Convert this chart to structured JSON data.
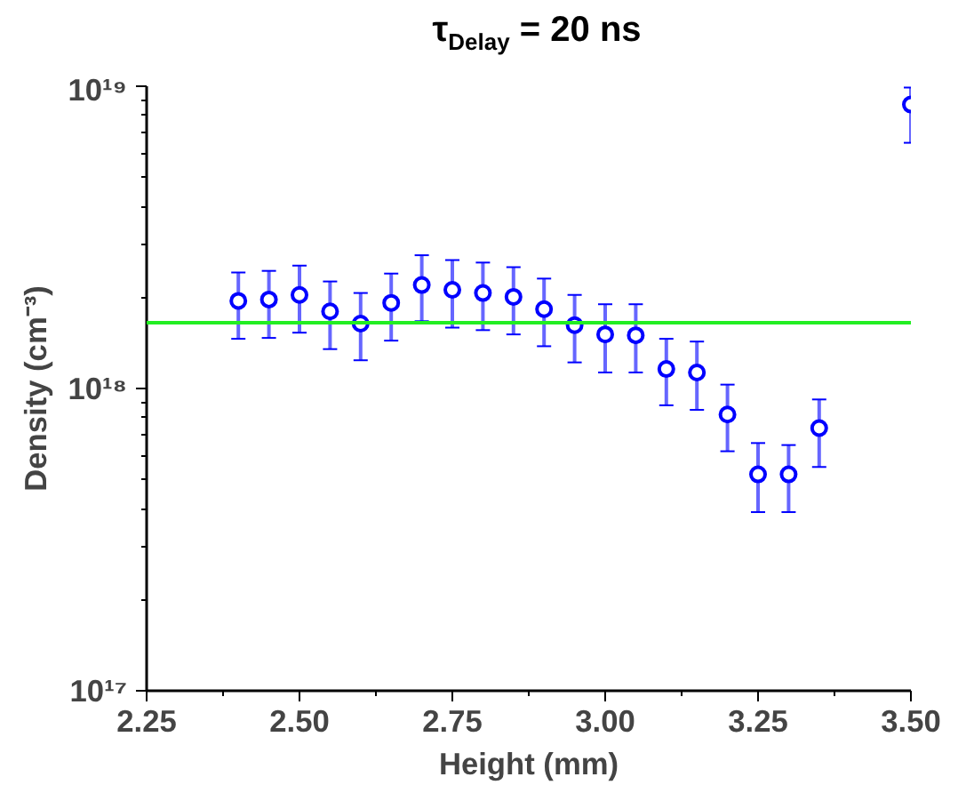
{
  "chart_data": {
    "type": "scatter",
    "title": "τ$_{Delay}$ = 20 ns",
    "xlabel": "Height (mm)",
    "ylabel": "Density (cm⁻³)",
    "x": [
      2.4,
      2.45,
      2.5,
      2.55,
      2.6,
      2.65,
      2.7,
      2.75,
      2.8,
      2.85,
      2.9,
      2.95,
      3.0,
      3.05,
      3.1,
      3.15,
      3.2,
      3.25,
      3.3,
      3.35,
      3.5
    ],
    "series": [
      {
        "color": "#0000ff",
        "values": [
          1.95e+18,
          1.97e+18,
          2.04e+18,
          1.8e+18,
          1.64e+18,
          1.92e+18,
          2.2e+18,
          2.12e+18,
          2.07e+18,
          2.01e+18,
          1.83e+18,
          1.62e+18,
          1.51e+18,
          1.5e+18,
          1.16e+18,
          1.13e+18,
          8.2e+17,
          5.2e+17,
          5.2e+17,
          7.4e+17,
          8.7e+18
        ],
        "errors": [
          [
            1.46e+18,
            2.42e+18
          ],
          [
            1.47e+18,
            2.45e+18
          ],
          [
            1.53e+18,
            2.55e+18
          ],
          [
            1.35e+18,
            2.26e+18
          ],
          [
            1.24e+18,
            2.07e+18
          ],
          [
            1.44e+18,
            2.4e+18
          ],
          [
            1.67e+18,
            2.76e+18
          ],
          [
            1.59e+18,
            2.66e+18
          ],
          [
            1.56e+18,
            2.61e+18
          ],
          [
            1.51e+18,
            2.52e+18
          ],
          [
            1.38e+18,
            2.31e+18
          ],
          [
            1.22e+18,
            2.04e+18
          ],
          [
            1.13e+18,
            1.9e+18
          ],
          [
            1.13e+18,
            1.9e+18
          ],
          [
            8.8e+17,
            1.46e+18
          ],
          [
            8.5e+17,
            1.43e+18
          ],
          [
            6.2e+17,
            1.03e+18
          ],
          [
            3.9e+17,
            6.6e+17
          ],
          [
            3.9e+17,
            6.5e+17
          ],
          [
            5.5e+17,
            9.2e+17
          ],
          [
            6.5e+18,
            9.9e+18
          ]
        ]
      }
    ],
    "marker": "circle",
    "log": "y",
    "grid": false,
    "xlim": [
      2.25,
      3.5
    ],
    "xticks": [
      {
        "value": 2.25,
        "label": "2.25"
      },
      {
        "value": 2.5,
        "label": "2.50"
      },
      {
        "value": 2.75,
        "label": "2.75"
      },
      {
        "value": 3.0,
        "label": "3.00"
      },
      {
        "value": 3.25,
        "label": "3.25"
      },
      {
        "value": 3.5,
        "label": "3.50"
      }
    ],
    "ylim": [
      1e+17,
      1e+19
    ],
    "yticks": [
      {
        "value": 1e+17,
        "label": "10¹⁷"
      },
      {
        "value": 1e+18,
        "label": "10¹⁸"
      },
      {
        "value": 1e+19,
        "label": "10¹⁹"
      }
    ],
    "ref_lines": [
      {
        "axis": "y",
        "value": 1.65e+18,
        "label": null,
        "color": "#22ee22",
        "line_style": "solid"
      }
    ]
  }
}
